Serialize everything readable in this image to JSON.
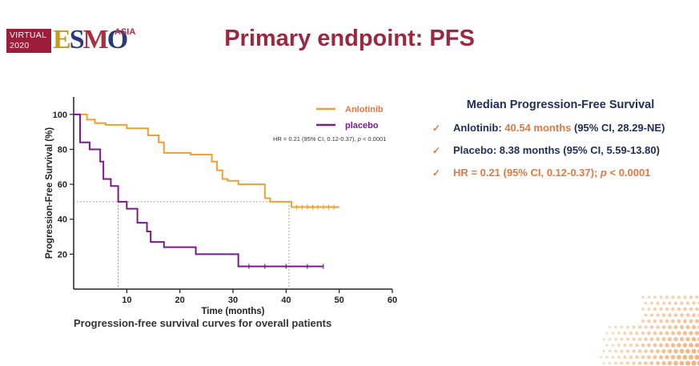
{
  "logo": {
    "virtual_line1": "VIRTUAL",
    "virtual_line2": "2020",
    "wordmark": "ESMO",
    "region": "ASIA"
  },
  "title": "Primary endpoint: PFS",
  "caption": "Progression-free survival curves for overall patients",
  "summary": {
    "heading": "Median Progression-Free Survival",
    "anlotinib_label": "Anlotinib:",
    "anlotinib_value": "40.54 months",
    "anlotinib_ci": "(95% CI, 28.29-NE)",
    "placebo_text": "Placebo: 8.38 months (95% CI, 5.59-13.80)",
    "hr_text": "HR = 0.21 (95% CI, 0.12-0.37);",
    "hr_p_symbol": "p",
    "hr_p_value": "< 0.0001"
  },
  "colors": {
    "anlotinib": "#f0a030",
    "placebo": "#7a1a8c",
    "title": "#9c2740",
    "accent": "#e07a44",
    "navy": "#1f2d5c"
  },
  "chart_data": {
    "type": "line",
    "xlabel": "Time (months)",
    "ylabel": "Progression-Free Survival (%)",
    "xlim": [
      0,
      60
    ],
    "ylim": [
      0,
      110
    ],
    "xticks": [
      10,
      20,
      30,
      40,
      50,
      60
    ],
    "yticks": [
      20,
      40,
      60,
      80,
      100
    ],
    "annotation": "HR = 0.21 (95% CI, 0.12-0.37), p < 0.0001",
    "annotation_main": "HR = 0.21 (95% CI, 0.12-0.37),",
    "annotation_p_symbol": "p",
    "annotation_p_value": "< 0.0001",
    "median_line": {
      "y": 50,
      "x": [
        8.38,
        40.54
      ]
    },
    "legend_position": "top-right",
    "series": [
      {
        "name": "Anlotinib",
        "x": [
          0,
          2.5,
          4,
          6,
          10,
          14,
          16,
          17,
          22,
          26,
          27,
          28,
          29,
          31,
          36,
          37,
          41,
          50
        ],
        "y": [
          100,
          97,
          95,
          94,
          92,
          88,
          84,
          78,
          77,
          73,
          68,
          63,
          62,
          60,
          52,
          50,
          47,
          47
        ],
        "censored_x": [
          42,
          43,
          44,
          45,
          46,
          47,
          48,
          49
        ]
      },
      {
        "name": "placebo",
        "x": [
          0,
          1.2,
          3,
          5,
          5.6,
          7,
          8.38,
          10,
          12,
          13.8,
          14.5,
          17,
          23,
          31,
          47
        ],
        "y": [
          100,
          84,
          80,
          73,
          63,
          59,
          50,
          46,
          38,
          33,
          27,
          24,
          20,
          13,
          13
        ],
        "censored_x": [
          33,
          36,
          40,
          44,
          47
        ]
      }
    ]
  }
}
